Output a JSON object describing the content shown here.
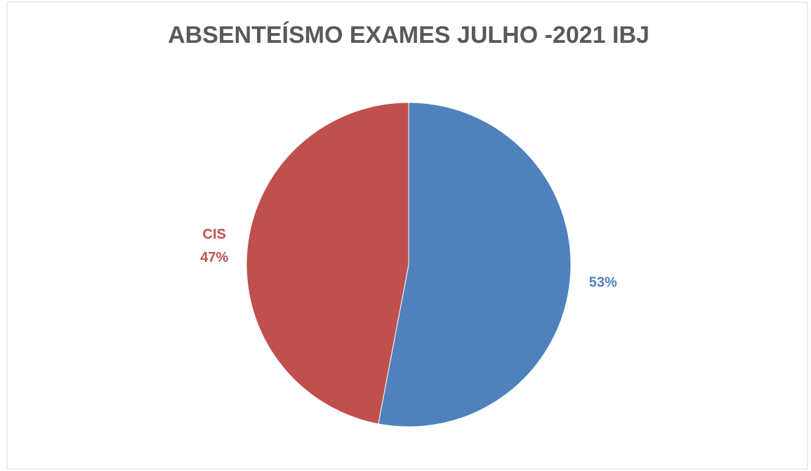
{
  "chart_data": {
    "type": "pie",
    "title": "ABSENTEÍSMO EXAMES JULHO -2021 IBJ",
    "categories": [
      null,
      "CIS"
    ],
    "values": [
      53,
      47
    ],
    "value_labels": [
      "53%",
      "47%"
    ],
    "colors": [
      "#4f81bd",
      "#c0504d"
    ]
  }
}
